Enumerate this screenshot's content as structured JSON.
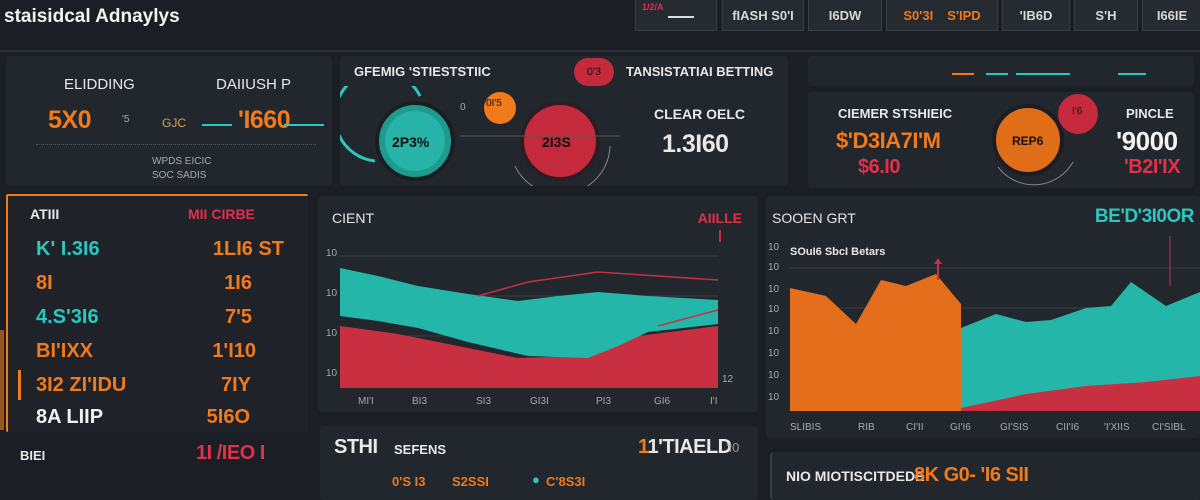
{
  "app": {
    "title": "staisidcal Adnaylys"
  },
  "tabs": [
    "1/2/A",
    "fIASH S0'I",
    "I6DW",
    "S0'3I",
    "S'IPD",
    "'IB6D",
    "S'H",
    "I66IE"
  ],
  "top_left": {
    "label_left": "ELIDDING",
    "label_right": "DAIIUSH P",
    "big_left": "5X0",
    "big_left_suffix": "'5",
    "mid_small": "GJC",
    "big_right": "'I660",
    "foot1": "WPDS EICIC",
    "foot2": "SOC SADIS"
  },
  "center_top": {
    "title": "GFEMIG 'STIESTSTIIC",
    "pill": "0'3",
    "title2": "TANSISTATIAI BETTING",
    "donut1_label": "2P3%",
    "donut2_label": "2I3S",
    "small_pill": "0I'5",
    "small_num": "0",
    "metric_label": "CLEAR OELC",
    "metric_value": "1.3I60"
  },
  "right_top": {
    "title": "CIEMER STSHIEIC",
    "title2": "PINCLE",
    "big_orange": "$'D3IA7I'M",
    "red_value": "$6.I0",
    "donut_label": "REP6",
    "pill": "I'6",
    "big_white": "'9000",
    "red_right": "'B2I'IX"
  },
  "left_list": {
    "header_left": "ATIII",
    "header_right": "MII CIRBE",
    "rows": [
      {
        "k": "K' I.3I6",
        "v": "1LI6 ST"
      },
      {
        "k": "8I",
        "v": "1I6"
      },
      {
        "k": "4.S'3I6",
        "v": "7'5"
      },
      {
        "k": "BI'IXX",
        "v": "1'I10"
      },
      {
        "k": "3I2 ZI'IDU",
        "v": "7IY"
      },
      {
        "k": "8A LIIP",
        "v": "5I6O"
      }
    ],
    "footer_left": "BIEI",
    "footer_right": "1I /IEO I"
  },
  "center_chart": {
    "title": "CIENT",
    "corner": "AIILLE",
    "xticks": [
      "MI'I",
      "BI3",
      "SI3",
      "GI3I",
      "PI3",
      "GI6",
      "I'I"
    ],
    "yticks": [
      "10",
      "10",
      "10",
      "10",
      "12"
    ]
  },
  "right_chart": {
    "title": "SOOEN GRT",
    "corner": "BE'D'3I0OR",
    "subtitle": "SOuI6 SbcI Betars",
    "xticks": [
      "SLIBIS",
      "RIB",
      "CI'II",
      "GI'I6",
      "GI'SIS",
      "CII'I6",
      "'I'XIIS",
      "CI'SIBL"
    ],
    "yticks": [
      "10",
      "10",
      "10",
      "10",
      "10",
      "10",
      "10",
      "10"
    ]
  },
  "bottom_center": {
    "label_big": "STHI",
    "label_small": "SEFENS",
    "value": "1'TIAELD",
    "badge": "'I0",
    "items": [
      "0'S I3",
      "S2SSI",
      "C'8S3I"
    ]
  },
  "bottom_right": {
    "text": "NIO MIOTISCITDEDE",
    "value": "8K G0- 'I6 SII"
  },
  "colors": {
    "orange": "#f07a1c",
    "teal": "#2cc7bf",
    "red": "#e0304a",
    "bg": "#1b1e24"
  }
}
